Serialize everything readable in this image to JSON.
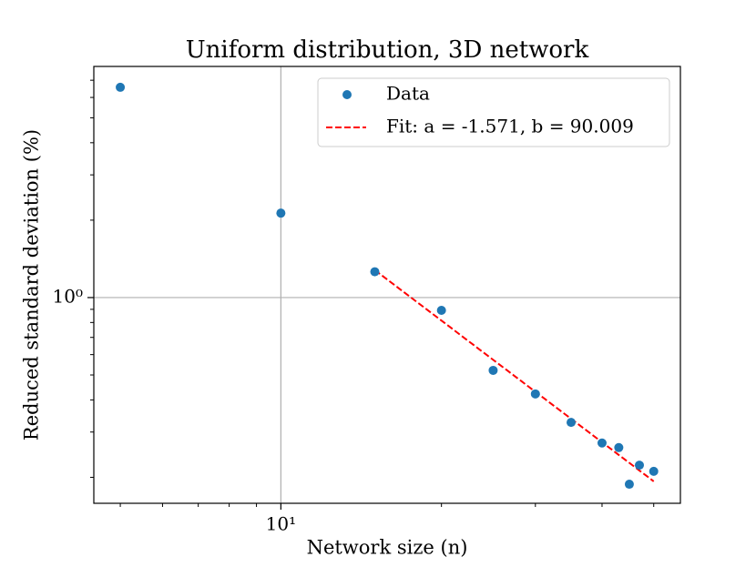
{
  "chart_data": {
    "type": "scatter",
    "title": "Uniform distribution, 3D network",
    "x_label": "Network size (n)",
    "y_label": "Reduced standard deviation (%)",
    "x_scale": "log",
    "y_scale": "log",
    "xlim": [
      4.46,
      56.1
    ],
    "ylim": [
      0.1585,
      7.92
    ],
    "xticks": [
      {
        "value": 10,
        "label": "10¹"
      }
    ],
    "yticks": [
      {
        "value": 1,
        "label": "10⁰"
      }
    ],
    "xminorticks": [
      5,
      6,
      7,
      8,
      9,
      20,
      30,
      40,
      50
    ],
    "yminorticks": [
      0.2,
      0.3,
      0.4,
      0.5,
      0.6,
      0.7,
      0.8,
      0.9,
      2,
      3,
      4,
      5,
      6,
      7
    ],
    "grid": true,
    "legend": "upper right",
    "series": [
      {
        "name": "Data",
        "color": "#1f77b4",
        "x": [
          5,
          10,
          15,
          20,
          25,
          30,
          35,
          40,
          43,
          45,
          47,
          50
        ],
        "values": [
          6.57,
          2.13,
          1.26,
          0.892,
          0.521,
          0.422,
          0.327,
          0.272,
          0.261,
          0.188,
          0.223,
          0.211
        ]
      }
    ],
    "fit": {
      "name": "Fit: a = -1.571, b = 90.009",
      "color": "#ff0000",
      "a": -1.571,
      "b": 90.009,
      "xrange": [
        15,
        50
      ]
    }
  }
}
